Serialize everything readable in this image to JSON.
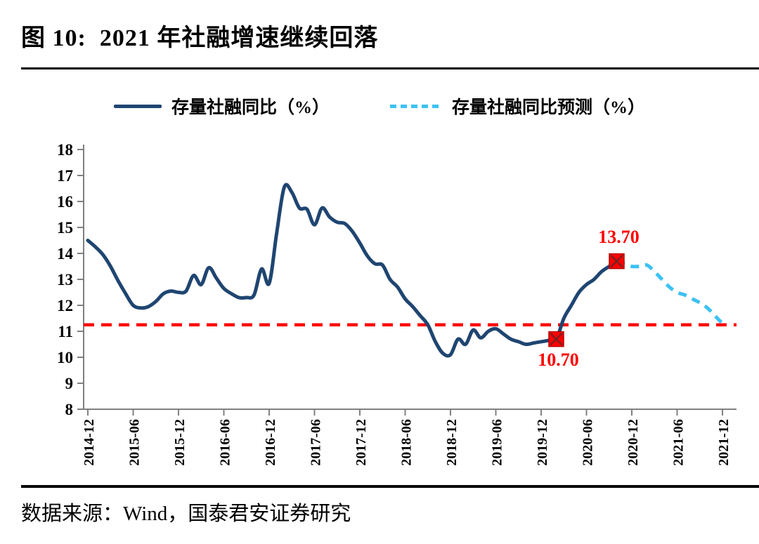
{
  "page": {
    "title": "图 10:  2021 年社融增速继续回落",
    "source": "数据来源：Wind，国泰君安证券研究"
  },
  "legend": [
    {
      "label": "存量社融同比（%）",
      "style": "solid"
    },
    {
      "label": "存量社融同比预测（%）",
      "style": "dashed"
    }
  ],
  "colors": {
    "actual_line": "#1F4571",
    "forecast_line": "#3BC2F4",
    "reference_red": "#FE0000",
    "axis_grey": "#808080"
  },
  "chart_data": {
    "type": "line",
    "title": "图 10: 2021 年社融增速继续回落",
    "xlabel": "",
    "ylabel": "",
    "grid": false,
    "legend_position": "top",
    "y_axis": {
      "min": 8,
      "max": 18,
      "step": 1
    },
    "x_axis": {
      "unit": "month",
      "range": [
        "2014-12",
        "2021-12"
      ],
      "tick_interval_months": 6,
      "tick_labels": [
        "2014-12",
        "2015-06",
        "2015-12",
        "2016-06",
        "2016-12",
        "2017-06",
        "2017-12",
        "2018-06",
        "2018-12",
        "2019-06",
        "2019-12",
        "2020-06",
        "2020-12",
        "2021-06",
        "2021-12"
      ]
    },
    "reference_line": {
      "value": 11.25,
      "color": "#FE0000",
      "style": "dashed"
    },
    "series": [
      {
        "name": "存量社融同比（%）",
        "style": "solid",
        "color": "#1F4571",
        "start_month": "2014-12",
        "frequency": "monthly",
        "values": [
          14.5,
          14.25,
          13.95,
          13.5,
          12.95,
          12.45,
          12.0,
          11.9,
          11.95,
          12.15,
          12.45,
          12.55,
          12.5,
          12.55,
          13.15,
          12.8,
          13.45,
          13.05,
          12.65,
          12.45,
          12.3,
          12.3,
          12.4,
          13.4,
          12.85,
          14.8,
          16.55,
          16.35,
          15.75,
          15.7,
          15.1,
          15.75,
          15.4,
          15.2,
          15.15,
          14.85,
          14.4,
          13.9,
          13.6,
          13.55,
          13.0,
          12.7,
          12.25,
          11.95,
          11.6,
          11.25,
          10.6,
          10.15,
          10.1,
          10.7,
          10.5,
          11.05,
          10.75,
          11.0,
          11.1,
          10.9,
          10.7,
          10.6,
          10.5,
          10.55,
          10.6,
          10.65,
          10.7,
          11.5,
          12.0,
          12.5,
          12.8,
          13.0,
          13.3,
          13.5,
          13.7
        ]
      },
      {
        "name": "存量社融同比预测（%）",
        "style": "dashed",
        "color": "#3BC2F4",
        "start_month": "2020-10",
        "frequency": "monthly",
        "values": [
          13.7,
          13.6,
          13.5,
          13.5,
          13.55,
          13.3,
          13.0,
          12.7,
          12.5,
          12.4,
          12.25,
          12.1,
          11.9,
          11.6,
          11.3
        ]
      }
    ],
    "annotations": [
      {
        "label": "13.70",
        "x_month": "2020-10",
        "value": 13.7,
        "position": "above",
        "marker": "x-square",
        "color": "#FE0000"
      },
      {
        "label": "10.70",
        "x_month": "2020-02",
        "value": 10.7,
        "position": "below",
        "marker": "x-square",
        "color": "#FE0000"
      }
    ]
  }
}
